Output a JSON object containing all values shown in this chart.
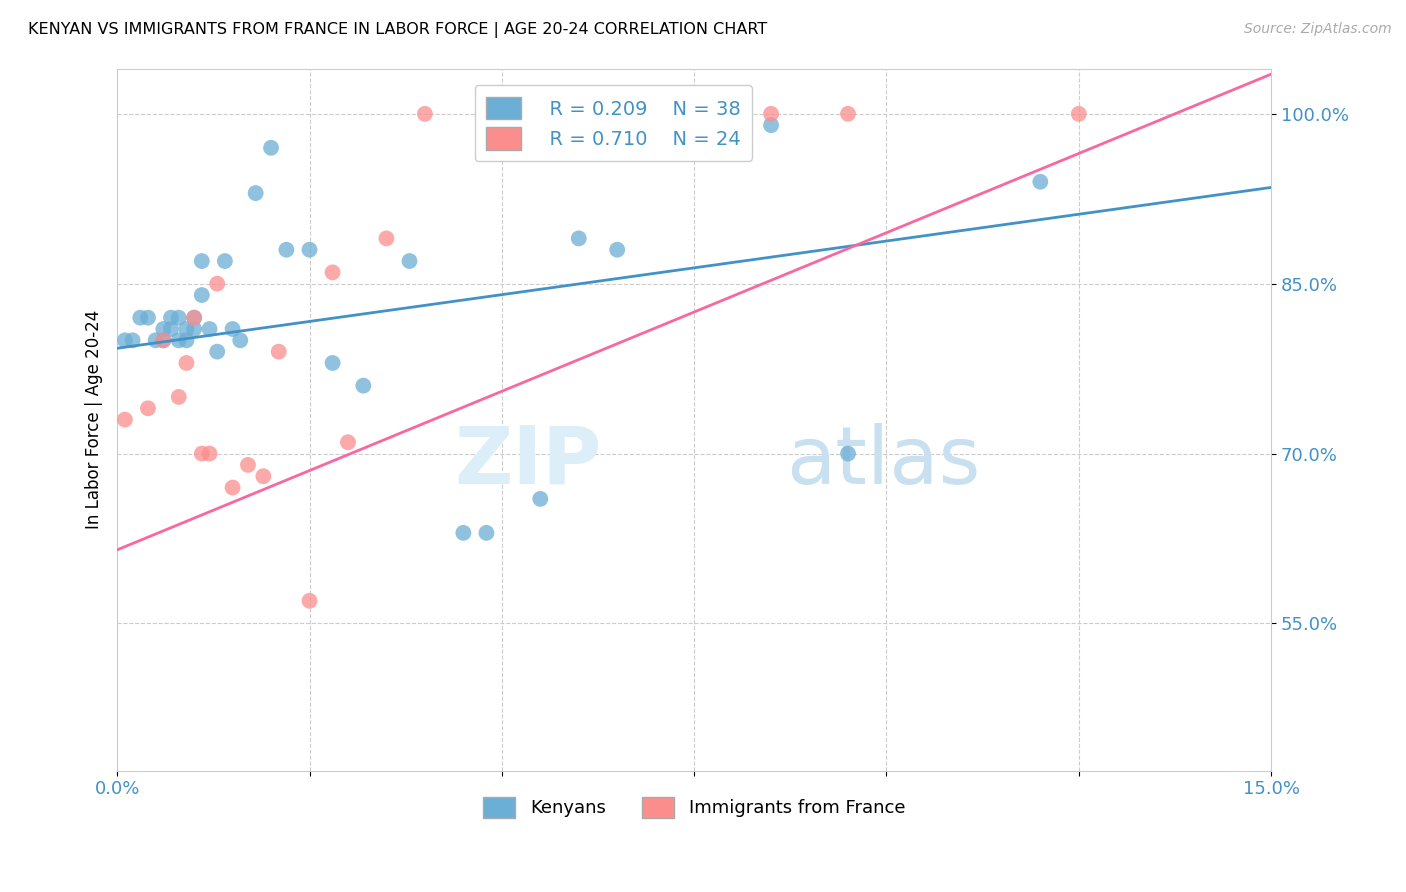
{
  "title": "KENYAN VS IMMIGRANTS FROM FRANCE IN LABOR FORCE | AGE 20-24 CORRELATION CHART",
  "source": "Source: ZipAtlas.com",
  "ylabel": "In Labor Force | Age 20-24",
  "xlim": [
    0.0,
    0.15
  ],
  "ylim": [
    0.42,
    1.04
  ],
  "y_ticks": [
    0.55,
    0.7,
    0.85,
    1.0
  ],
  "y_tick_labels": [
    "55.0%",
    "70.0%",
    "85.0%",
    "100.0%"
  ],
  "x_tick_positions": [
    0.0,
    0.025,
    0.05,
    0.075,
    0.1,
    0.125,
    0.15
  ],
  "legend_r1": "R = 0.209",
  "legend_n1": "N = 38",
  "legend_r2": "R = 0.710",
  "legend_n2": "N = 24",
  "blue_color": "#6baed6",
  "pink_color": "#fc8d8d",
  "line_blue": "#4292c6",
  "line_pink": "#f768a1",
  "text_color": "#4292c6",
  "watermark_zip": "ZIP",
  "watermark_atlas": "atlas",
  "kenyan_x": [
    0.001,
    0.002,
    0.003,
    0.004,
    0.005,
    0.006,
    0.006,
    0.007,
    0.007,
    0.008,
    0.008,
    0.009,
    0.009,
    0.01,
    0.01,
    0.011,
    0.011,
    0.012,
    0.013,
    0.014,
    0.015,
    0.016,
    0.018,
    0.02,
    0.022,
    0.025,
    0.028,
    0.032,
    0.038,
    0.045,
    0.048,
    0.055,
    0.06,
    0.065,
    0.075,
    0.085,
    0.095,
    0.12
  ],
  "kenyan_y": [
    0.8,
    0.8,
    0.82,
    0.82,
    0.8,
    0.8,
    0.81,
    0.81,
    0.82,
    0.82,
    0.8,
    0.81,
    0.8,
    0.81,
    0.82,
    0.84,
    0.87,
    0.81,
    0.79,
    0.87,
    0.81,
    0.8,
    0.93,
    0.97,
    0.88,
    0.88,
    0.78,
    0.76,
    0.87,
    0.63,
    0.63,
    0.66,
    0.89,
    0.88,
    0.99,
    0.99,
    0.7,
    0.94
  ],
  "france_x": [
    0.001,
    0.004,
    0.006,
    0.008,
    0.009,
    0.01,
    0.011,
    0.012,
    0.013,
    0.015,
    0.017,
    0.019,
    0.021,
    0.025,
    0.028,
    0.03,
    0.035,
    0.04,
    0.055,
    0.065,
    0.075,
    0.085,
    0.095,
    0.125
  ],
  "france_y": [
    0.73,
    0.74,
    0.8,
    0.75,
    0.78,
    0.82,
    0.7,
    0.7,
    0.85,
    0.67,
    0.69,
    0.68,
    0.79,
    0.57,
    0.86,
    0.71,
    0.89,
    1.0,
    1.0,
    1.0,
    1.0,
    1.0,
    1.0,
    1.0
  ],
  "blue_line_x": [
    0.0,
    0.15
  ],
  "blue_line_y": [
    0.793,
    0.935
  ],
  "pink_line_x": [
    0.0,
    0.15
  ],
  "pink_line_y": [
    0.615,
    1.035
  ]
}
